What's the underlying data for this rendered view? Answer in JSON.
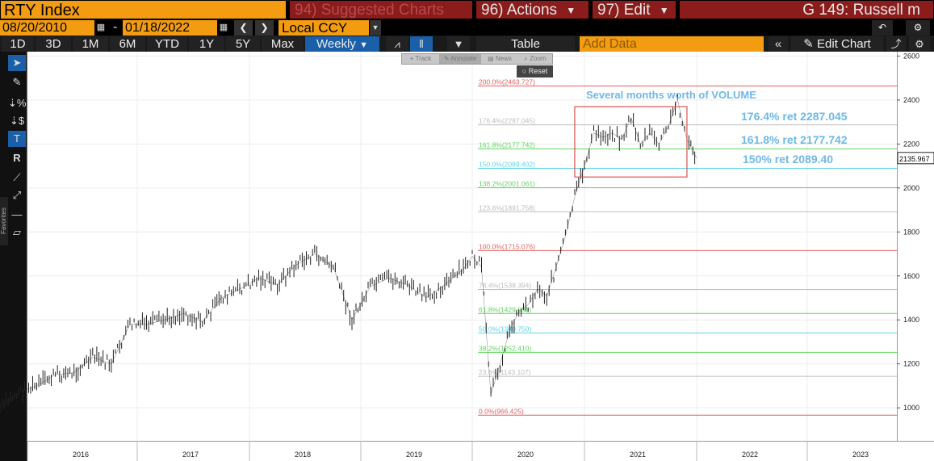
{
  "header": {
    "ticker": "RTY Index",
    "suggested": {
      "num": "94)",
      "label": "Suggested Charts"
    },
    "actions": {
      "num": "96)",
      "label": "Actions"
    },
    "edit": {
      "num": "97)",
      "label": "Edit"
    },
    "window_title": "G 149: Russell m"
  },
  "dates": {
    "start": "08/20/2010",
    "end": "01/18/2022",
    "dash": "-",
    "currency": "Local CCY"
  },
  "toolbar": {
    "ranges": [
      "1D",
      "3D",
      "1M",
      "6M",
      "YTD",
      "1Y",
      "5Y",
      "Max"
    ],
    "frequency": "Weekly",
    "table_label": "Table",
    "add_data_placeholder": "Add Data",
    "edit_chart_label": "Edit Chart"
  },
  "floating_toolbar": {
    "items": [
      "Track",
      "Annotate",
      "News",
      "Zoom"
    ],
    "reset": "Reset"
  },
  "sidebar": {
    "favorites": "Favorites"
  },
  "colors": {
    "orange": "#f39c12",
    "menu_red": "#8b1c1c",
    "selected_blue": "#1a5fa8",
    "fib_red": "#e06060",
    "fib_green": "#5cd65c",
    "fib_cyan": "#5fd3e6",
    "fib_gray": "#bdbdbd",
    "annotation_blue": "#6fb8e8"
  },
  "chart_data": {
    "type": "line",
    "title": "",
    "xlabel": "",
    "ylabel": "",
    "ylim": [
      850,
      2620
    ],
    "yticks": [
      1000,
      1200,
      1400,
      1600,
      1800,
      2000,
      2200,
      2400,
      2600
    ],
    "xticks": [
      "2016",
      "2017",
      "2018",
      "2019",
      "2020",
      "2021",
      "2022",
      "2023"
    ],
    "last_price": "2135.967",
    "series": [
      {
        "x": [
          "2015-10",
          "2015-12",
          "2016-02",
          "2016-04",
          "2016-06",
          "2016-08",
          "2016-10",
          "2016-12",
          "2017-02",
          "2017-04",
          "2017-06",
          "2017-08",
          "2017-10",
          "2017-12",
          "2018-02",
          "2018-04",
          "2018-06",
          "2018-08",
          "2018-10",
          "2018-12",
          "2019-02",
          "2019-04",
          "2019-06",
          "2019-08",
          "2019-10",
          "2019-12",
          "2020-01",
          "2020-02",
          "2020-03",
          "2020-04",
          "2020-05",
          "2020-06",
          "2020-07",
          "2020-08",
          "2020-09",
          "2020-10",
          "2020-11",
          "2020-12",
          "2021-01",
          "2021-02",
          "2021-03",
          "2021-04",
          "2021-05",
          "2021-06",
          "2021-07",
          "2021-08",
          "2021-09",
          "2021-10",
          "2021-11",
          "2021-12",
          "2022-01"
        ],
        "values": [
          1000,
          1070,
          1100,
          1150,
          1160,
          1230,
          1200,
          1380,
          1380,
          1400,
          1430,
          1390,
          1500,
          1540,
          1590,
          1560,
          1650,
          1700,
          1640,
          1400,
          1550,
          1590,
          1560,
          1500,
          1560,
          1630,
          1690,
          1640,
          1060,
          1200,
          1350,
          1440,
          1470,
          1540,
          1510,
          1640,
          1780,
          1960,
          2100,
          2250,
          2230,
          2250,
          2220,
          2320,
          2200,
          2250,
          2200,
          2280,
          2400,
          2220,
          2136
        ]
      }
    ],
    "fibonacci": [
      {
        "label": "200.0%(2463.727)",
        "value": 2463.727,
        "color": "red"
      },
      {
        "label": "176.4%(2287.045)",
        "value": 2287.045,
        "color": "gray"
      },
      {
        "label": "161.8%(2177.742)",
        "value": 2177.742,
        "color": "green"
      },
      {
        "label": "150.0%(2089.402)",
        "value": 2089.402,
        "color": "cyan"
      },
      {
        "label": "138.2%(2001.061)",
        "value": 2001.061,
        "color": "green"
      },
      {
        "label": "123.6%(1891.758)",
        "value": 1891.758,
        "color": "gray"
      },
      {
        "label": "100.0%(1715.076)",
        "value": 1715.076,
        "color": "red"
      },
      {
        "label": "76.4%(1538.394)",
        "value": 1538.394,
        "color": "gray"
      },
      {
        "label": "61.8%(1429.091)",
        "value": 1429.091,
        "color": "green"
      },
      {
        "label": "50.0%(1340.750)",
        "value": 1340.75,
        "color": "cyan"
      },
      {
        "label": "38.2%(1252.410)",
        "value": 1252.41,
        "color": "green"
      },
      {
        "label": "23.6%(1143.107)",
        "value": 1143.107,
        "color": "gray"
      },
      {
        "label": "0.0%(966.425)",
        "value": 966.425,
        "color": "red"
      }
    ],
    "annotations": {
      "box_title": "Several months worth of VOLUME",
      "notes": [
        "176.4% ret 2287.045",
        "161.8% ret 2177.742",
        "150% ret 2089.40"
      ],
      "box_range": {
        "x": [
          "2020-12",
          "2021-12"
        ],
        "y": [
          2050,
          2370
        ]
      }
    }
  }
}
